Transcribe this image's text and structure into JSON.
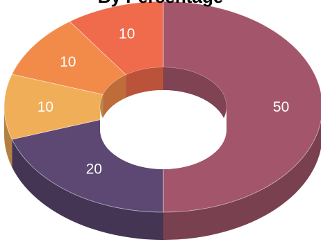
{
  "chart_data": {
    "type": "pie",
    "variant": "3d-donut",
    "title": "By Percentage",
    "slices": [
      {
        "label": "50",
        "value": 50,
        "color": "#a3566b"
      },
      {
        "label": "20",
        "value": 20,
        "color": "#5c4872"
      },
      {
        "label": "10",
        "value": 10,
        "color": "#f1ae59"
      },
      {
        "label": "10",
        "value": 10,
        "color": "#f28a4a"
      },
      {
        "label": "10",
        "value": 10,
        "color": "#f06a4c"
      }
    ],
    "data_labels_shown": true,
    "legend": "none",
    "start_angle": "top, clockwise"
  }
}
